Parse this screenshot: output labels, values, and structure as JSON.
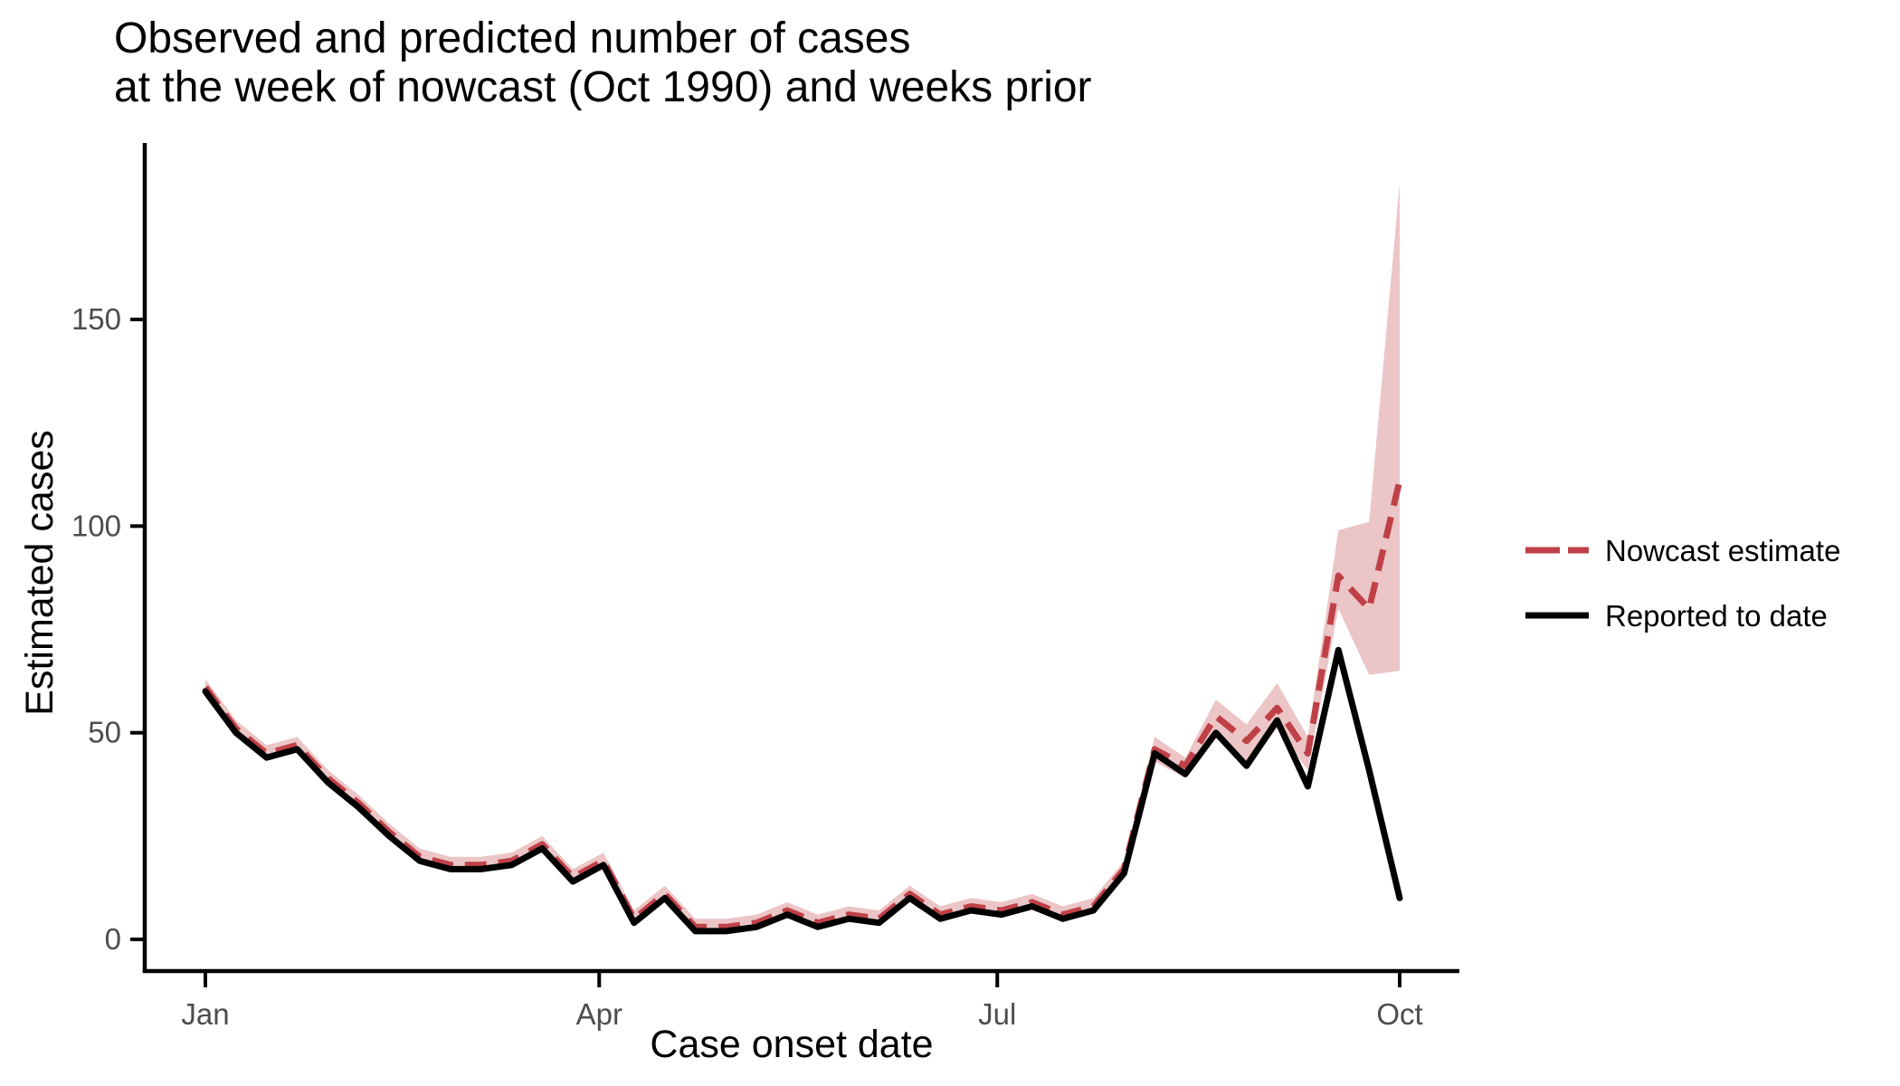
{
  "title": {
    "line1": "Observed and predicted number of cases",
    "line2": "at the week of nowcast (Oct 1990) and weeks prior"
  },
  "axes": {
    "x_label": "Case onset date",
    "y_label": "Estimated cases"
  },
  "legend": {
    "position": "right",
    "items": [
      {
        "label": "Nowcast estimate",
        "color": "#bf4147",
        "dashed": true
      },
      {
        "label": "Reported to date",
        "color": "#000000",
        "dashed": false
      }
    ]
  },
  "colors": {
    "nowcast_line": "#bf4147",
    "ribbon_fill": "#ecc5c7",
    "reported_line": "#000000",
    "axis_line": "#000000",
    "tick_label": "#4d4d4d"
  },
  "chart_data": {
    "type": "line",
    "title": "Observed and predicted number of cases at the week of nowcast (Oct 1990) and weeks prior",
    "xlabel": "Case onset date",
    "ylabel": "Estimated cases",
    "x_unit": "weekly case onset dates, Jan 1990 to Oct 1990",
    "n_weeks": 40,
    "x_tick_labels": [
      "Jan",
      "Apr",
      "Jul",
      "Oct"
    ],
    "x_tick_weeks": [
      0,
      12.86,
      25.86,
      39
    ],
    "y_ticks": [
      0,
      50,
      100,
      150
    ],
    "ylim": [
      0,
      192
    ],
    "grid": false,
    "legend_position": "right",
    "series": [
      {
        "name": "Reported to date",
        "values": [
          60,
          50,
          44,
          46,
          38,
          32,
          25,
          19,
          17,
          17,
          18,
          22,
          14,
          18,
          4,
          10,
          2,
          2,
          3,
          6,
          3,
          5,
          4,
          10,
          5,
          7,
          6,
          8,
          5,
          7,
          16,
          45,
          40,
          50,
          42,
          53,
          37,
          70,
          41,
          10
        ]
      },
      {
        "name": "Nowcast estimate",
        "values": [
          61,
          51,
          45,
          47,
          39,
          33,
          26,
          20,
          18,
          18,
          19,
          23,
          15,
          19,
          5,
          11,
          3,
          3,
          4,
          7,
          4,
          6,
          5,
          11,
          6,
          8,
          7,
          9,
          6,
          8,
          17,
          46,
          42,
          54,
          48,
          56,
          45,
          88,
          80,
          111
        ]
      },
      {
        "name": "Nowcast CI lower",
        "values": [
          60,
          50,
          44,
          46,
          38,
          32,
          25,
          19,
          17,
          17,
          18,
          22,
          14,
          18,
          4,
          10,
          2,
          2,
          3,
          6,
          3,
          5,
          4,
          10,
          5,
          7,
          6,
          8,
          5,
          7,
          15,
          43,
          39,
          50,
          42,
          51,
          41,
          80,
          64,
          65
        ]
      },
      {
        "name": "Nowcast CI upper",
        "values": [
          63,
          53,
          47,
          49,
          41,
          35,
          28,
          22,
          20,
          20,
          21,
          25,
          17,
          21,
          7,
          13,
          5,
          5,
          6,
          9,
          6,
          8,
          7,
          13,
          8,
          10,
          9,
          11,
          8,
          10,
          19,
          49,
          44,
          58,
          52,
          62,
          49,
          99,
          101,
          183
        ]
      }
    ]
  }
}
